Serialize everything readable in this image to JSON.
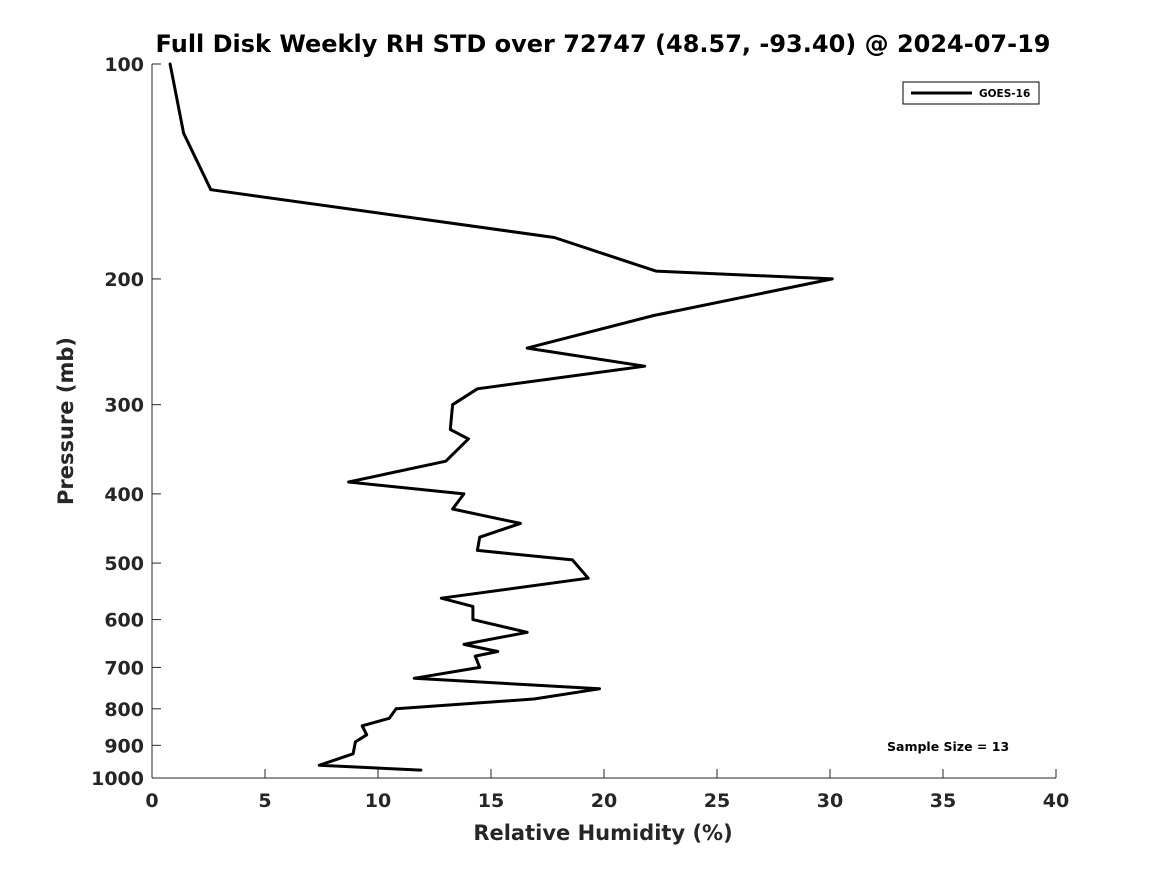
{
  "chart_data": {
    "type": "line",
    "title": "Full Disk Weekly RH STD over 72747 (48.57, -93.40) @ 2024-07-19",
    "xlabel": "Relative Humidity (%)",
    "ylabel": "Pressure (mb)",
    "xlim": [
      0,
      40
    ],
    "ylim": [
      100,
      1000
    ],
    "yscale": "log",
    "y_reversed": true,
    "xticks": [
      0,
      5,
      10,
      15,
      20,
      25,
      30,
      35,
      40
    ],
    "yticks": [
      100,
      200,
      300,
      400,
      500,
      600,
      700,
      800,
      900,
      1000
    ],
    "grid": false,
    "legend": {
      "placement": "top-right",
      "entries": [
        "GOES-16"
      ]
    },
    "annotation": "Sample Size = 13",
    "series": [
      {
        "name": "GOES-16",
        "color": "#000000",
        "points": [
          [
            0.8,
            100
          ],
          [
            1.4,
            125
          ],
          [
            2.6,
            150
          ],
          [
            17.8,
            175
          ],
          [
            22.3,
            195
          ],
          [
            30.1,
            200
          ],
          [
            22.2,
            225
          ],
          [
            16.6,
            250
          ],
          [
            21.8,
            265
          ],
          [
            14.4,
            285
          ],
          [
            13.3,
            300
          ],
          [
            13.2,
            325
          ],
          [
            14.0,
            335
          ],
          [
            13.0,
            360
          ],
          [
            8.7,
            385
          ],
          [
            13.8,
            400
          ],
          [
            13.3,
            420
          ],
          [
            16.3,
            440
          ],
          [
            14.5,
            460
          ],
          [
            14.4,
            480
          ],
          [
            18.6,
            495
          ],
          [
            19.3,
            525
          ],
          [
            12.8,
            560
          ],
          [
            14.2,
            575
          ],
          [
            14.2,
            600
          ],
          [
            16.6,
            625
          ],
          [
            13.8,
            650
          ],
          [
            15.3,
            665
          ],
          [
            14.3,
            675
          ],
          [
            14.5,
            700
          ],
          [
            11.6,
            725
          ],
          [
            19.8,
            750
          ],
          [
            16.9,
            775
          ],
          [
            10.8,
            800
          ],
          [
            10.5,
            825
          ],
          [
            9.3,
            845
          ],
          [
            9.5,
            870
          ],
          [
            9.0,
            890
          ],
          [
            8.9,
            925
          ],
          [
            7.4,
            960
          ],
          [
            11.9,
            975
          ]
        ]
      }
    ]
  }
}
